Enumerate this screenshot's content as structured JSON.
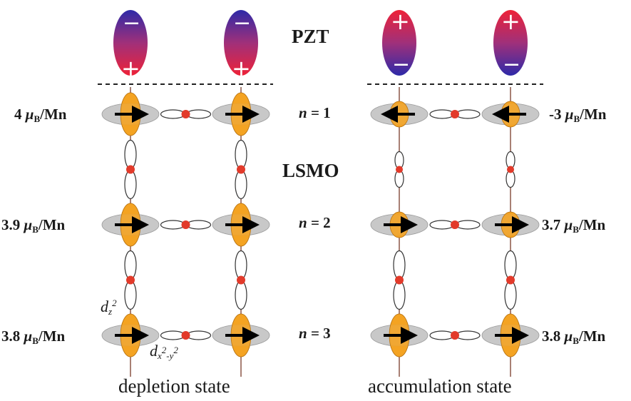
{
  "labels": {
    "pzt": "PZT",
    "lsmo": "LSMO",
    "depletion": "depletion state",
    "accumulation": "accumulation state"
  },
  "layers": [
    {
      "n_prefix": "n",
      "n_value": " = 1",
      "left_moment": "4",
      "right_moment": "-3"
    },
    {
      "n_prefix": "n",
      "n_value": " = 2",
      "left_moment": "3.9",
      "right_moment": "3.7"
    },
    {
      "n_prefix": "n",
      "n_value": " = 3",
      "left_moment": "3.8",
      "right_moment": "3.8"
    }
  ],
  "unit": {
    "mu": "μ",
    "sub": "B",
    "per": "/Mn"
  },
  "orbitals": {
    "dz2": {
      "base": "d",
      "sub": "z",
      "sup": "2"
    },
    "dx2y2": {
      "base": "d",
      "sub": "x",
      "sup1": "2",
      "mid": "-y",
      "sup2": "2"
    }
  },
  "polarization": {
    "left_top_sign": "−",
    "left_bottom_sign": "+",
    "right_top_sign": "+",
    "right_bottom_sign": "−"
  },
  "colors": {
    "orange": "#f4a322",
    "red_dot": "#e23a2a",
    "gray": "#c8c8c8",
    "pos": "#e8233f",
    "neg": "#3a2fb0"
  }
}
